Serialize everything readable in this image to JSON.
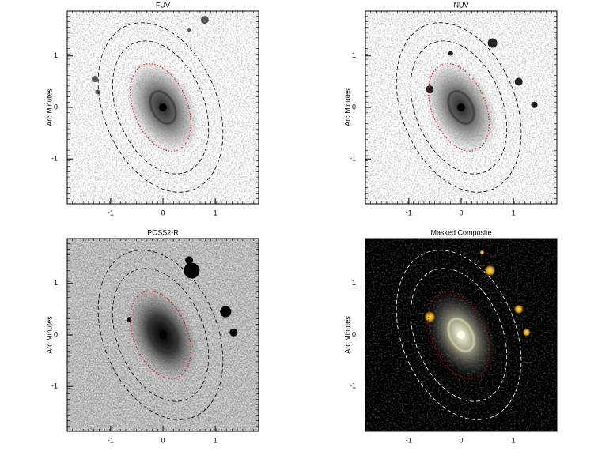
{
  "chart_data": [
    {
      "type": "image",
      "title": "FUV",
      "ylabel": "Arc Minutes",
      "xlim": [
        -1.83,
        1.83
      ],
      "ylim": [
        -1.87,
        1.87
      ],
      "xticks": [
        -1,
        0,
        1
      ],
      "yticks": [
        -1,
        0,
        1
      ]
    },
    {
      "type": "image",
      "title": "NUV",
      "ylabel": "Arc Minutes",
      "xlim": [
        -1.83,
        1.83
      ],
      "ylim": [
        -1.87,
        1.87
      ],
      "xticks": [
        -1,
        0,
        1
      ],
      "yticks": [
        -1,
        0,
        1
      ]
    },
    {
      "type": "image",
      "title": "POSS2-R",
      "ylabel": "Arc Minutes",
      "xlim": [
        -1.83,
        1.83
      ],
      "ylim": [
        -1.87,
        1.87
      ],
      "xticks": [
        -1,
        0,
        1
      ],
      "yticks": [
        -1,
        0,
        1
      ]
    },
    {
      "type": "image",
      "title": "Masked Composite",
      "ylabel": "Arc Minutes",
      "xlim": [
        -1.83,
        1.83
      ],
      "ylim": [
        -1.87,
        1.87
      ],
      "xticks": [
        -1,
        0,
        1
      ],
      "yticks": [
        -1,
        0,
        1
      ]
    }
  ]
}
